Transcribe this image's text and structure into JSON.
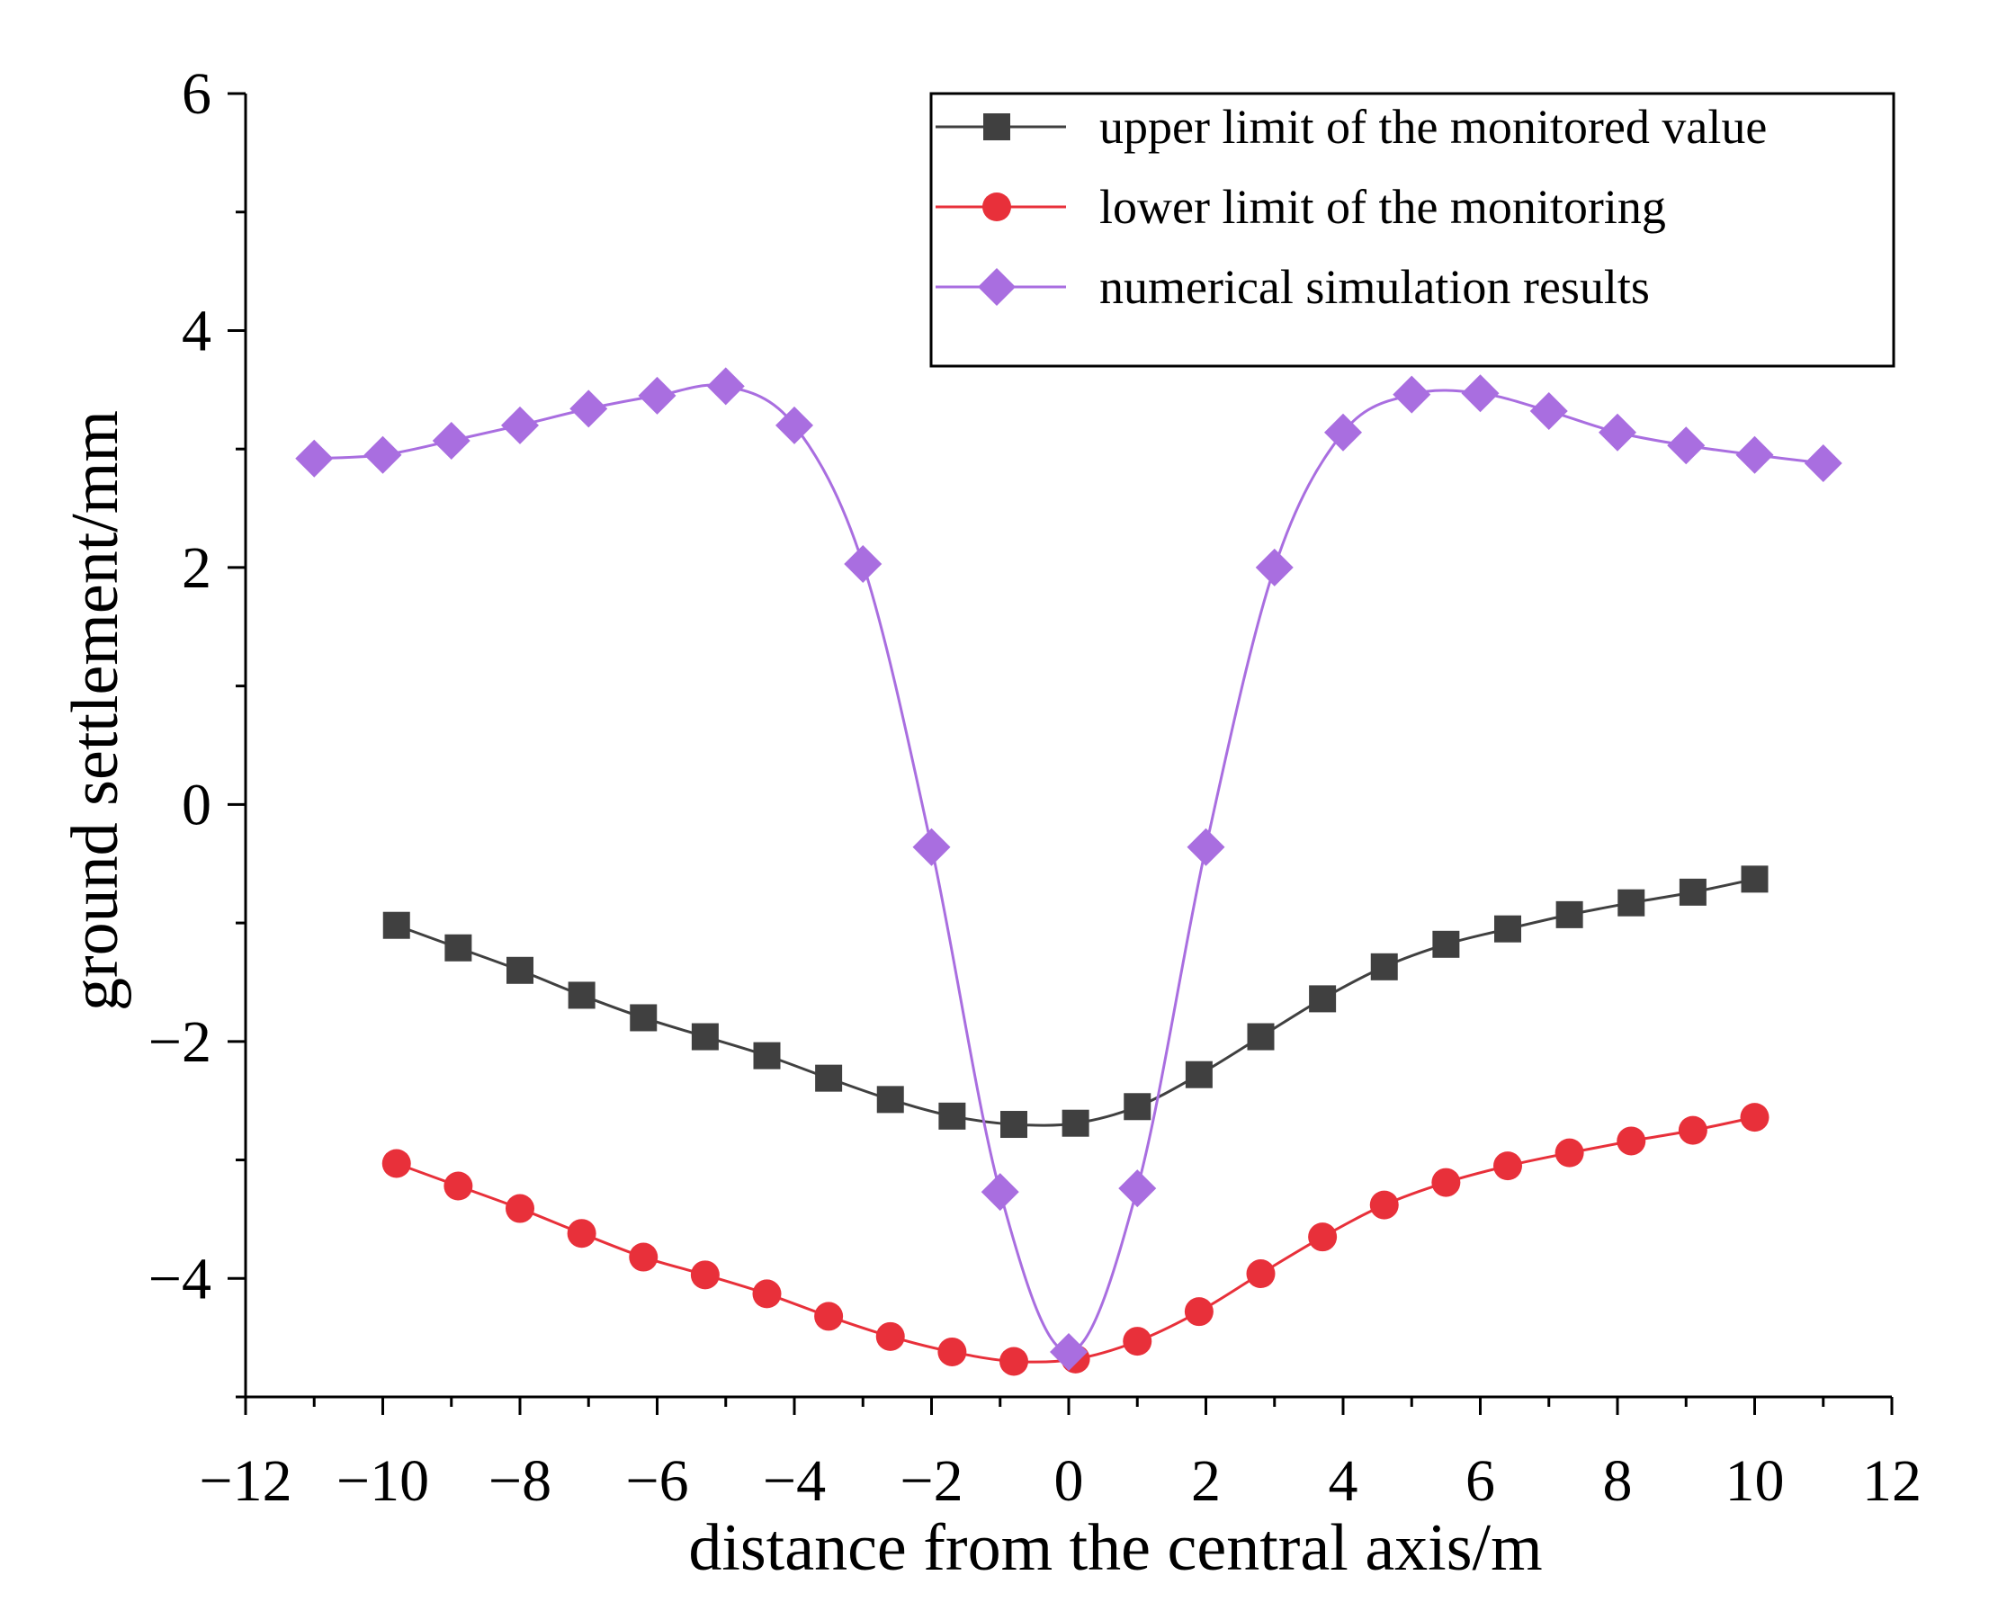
{
  "chart_data": {
    "type": "line",
    "xlabel": "distance from the central axis/m",
    "ylabel": "ground settlement/mm",
    "xlim": [
      -12,
      12
    ],
    "ylim": [
      -5,
      6
    ],
    "xticks": [
      -12,
      -10,
      -8,
      -6,
      -4,
      -2,
      0,
      2,
      4,
      6,
      8,
      10,
      12
    ],
    "yticks": [
      -4,
      -2,
      0,
      2,
      4,
      6
    ],
    "grid": false,
    "legend_position": "top-right",
    "series": [
      {
        "name": "upper limit of the monitored value",
        "color": "#404040",
        "marker": "square",
        "x": [
          -9.8,
          -8.9,
          -8.0,
          -7.1,
          -6.2,
          -5.3,
          -4.4,
          -3.5,
          -2.6,
          -1.7,
          -0.8,
          0.1,
          1.0,
          1.9,
          2.8,
          3.7,
          4.6,
          5.5,
          6.4,
          7.3,
          8.2,
          9.1,
          10.0
        ],
        "y": [
          -1.02,
          -1.21,
          -1.4,
          -1.61,
          -1.8,
          -1.96,
          -2.12,
          -2.31,
          -2.49,
          -2.63,
          -2.7,
          -2.69,
          -2.55,
          -2.28,
          -1.96,
          -1.64,
          -1.37,
          -1.18,
          -1.05,
          -0.93,
          -0.83,
          -0.74,
          -0.63
        ]
      },
      {
        "name": "lower limit of the monitoring",
        "color": "#e8303a",
        "marker": "circle",
        "x": [
          -9.8,
          -8.9,
          -8.0,
          -7.1,
          -6.2,
          -5.3,
          -4.4,
          -3.5,
          -2.6,
          -1.7,
          -0.8,
          0.1,
          1.0,
          1.9,
          2.8,
          3.7,
          4.6,
          5.5,
          6.4,
          7.3,
          8.2,
          9.1,
          10.0
        ],
        "y": [
          -3.03,
          -3.22,
          -3.41,
          -3.62,
          -3.82,
          -3.97,
          -4.13,
          -4.32,
          -4.49,
          -4.62,
          -4.7,
          -4.68,
          -4.53,
          -4.28,
          -3.96,
          -3.65,
          -3.38,
          -3.19,
          -3.05,
          -2.94,
          -2.84,
          -2.75,
          -2.64
        ]
      },
      {
        "name": "numerical simulation results",
        "color": "#a96ee0",
        "marker": "diamond",
        "x": [
          -11,
          -10,
          -9,
          -8,
          -7,
          -6,
          -5,
          -4,
          -3,
          -2,
          -1,
          0,
          1,
          2,
          3,
          4,
          5,
          6,
          7,
          8,
          9,
          10,
          11
        ],
        "y": [
          2.92,
          2.95,
          3.07,
          3.2,
          3.34,
          3.45,
          3.53,
          3.2,
          2.03,
          -0.36,
          -3.27,
          -4.62,
          -3.24,
          -0.36,
          2.0,
          3.14,
          3.46,
          3.47,
          3.32,
          3.14,
          3.03,
          2.95,
          2.88
        ]
      }
    ]
  }
}
